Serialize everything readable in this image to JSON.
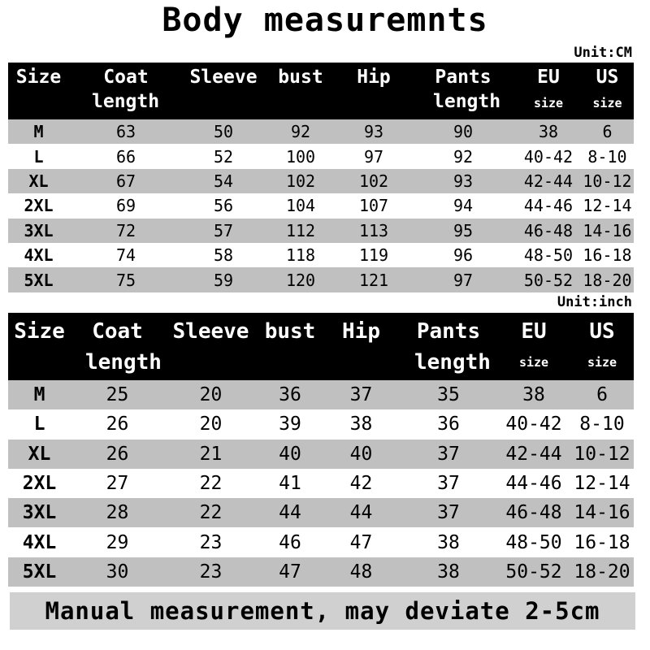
{
  "title": "Body measuremnts",
  "tables": [
    {
      "unit": "Unit:CM",
      "headers": [
        [
          "Size",
          ""
        ],
        [
          "Coat",
          "length"
        ],
        [
          "Sleeve",
          ""
        ],
        [
          "bust",
          ""
        ],
        [
          "Hip",
          ""
        ],
        [
          "Pants",
          "length"
        ],
        [
          "EU",
          "size"
        ],
        [
          "US",
          "size"
        ]
      ],
      "rows": [
        [
          "M",
          "63",
          "50",
          "92",
          "93",
          "90",
          "38",
          "6"
        ],
        [
          "L",
          "66",
          "52",
          "100",
          "97",
          "92",
          "40-42",
          "8-10"
        ],
        [
          "XL",
          "67",
          "54",
          "102",
          "102",
          "93",
          "42-44",
          "10-12"
        ],
        [
          "2XL",
          "69",
          "56",
          "104",
          "107",
          "94",
          "44-46",
          "12-14"
        ],
        [
          "3XL",
          "72",
          "57",
          "112",
          "113",
          "95",
          "46-48",
          "14-16"
        ],
        [
          "4XL",
          "74",
          "58",
          "118",
          "119",
          "96",
          "48-50",
          "16-18"
        ],
        [
          "5XL",
          "75",
          "59",
          "120",
          "121",
          "97",
          "50-52",
          "18-20"
        ]
      ]
    },
    {
      "unit": "Unit:inch",
      "headers": [
        [
          "Size",
          ""
        ],
        [
          "Coat",
          "length"
        ],
        [
          "Sleeve",
          ""
        ],
        [
          "bust",
          ""
        ],
        [
          "Hip",
          ""
        ],
        [
          "Pants",
          "length"
        ],
        [
          "EU",
          "size"
        ],
        [
          "US",
          "size"
        ]
      ],
      "rows": [
        [
          "M",
          "25",
          "20",
          "36",
          "37",
          "35",
          "38",
          "6"
        ],
        [
          "L",
          "26",
          "20",
          "39",
          "38",
          "36",
          "40-42",
          "8-10"
        ],
        [
          "XL",
          "26",
          "21",
          "40",
          "40",
          "37",
          "42-44",
          "10-12"
        ],
        [
          "2XL",
          "27",
          "22",
          "41",
          "42",
          "37",
          "44-46",
          "12-14"
        ],
        [
          "3XL",
          "28",
          "22",
          "44",
          "44",
          "37",
          "46-48",
          "14-16"
        ],
        [
          "4XL",
          "29",
          "23",
          "46",
          "47",
          "38",
          "48-50",
          "16-18"
        ],
        [
          "5XL",
          "30",
          "23",
          "47",
          "48",
          "38",
          "50-52",
          "18-20"
        ]
      ]
    }
  ],
  "footer": "Manual measurement, may deviate 2-5cm",
  "colors": {
    "header_bg": "#000000",
    "stripe": "#c0c0c0",
    "footer_bg": "#d0d0d0"
  }
}
